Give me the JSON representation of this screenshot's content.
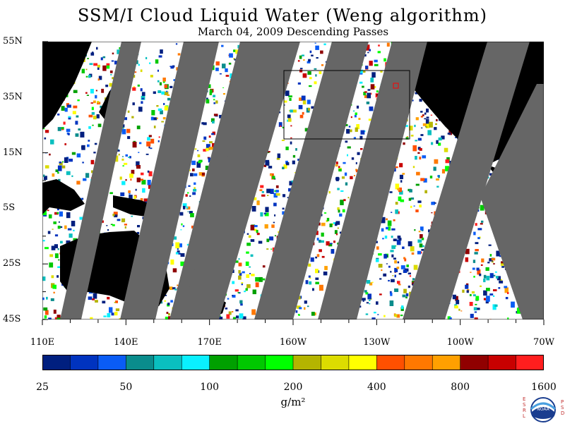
{
  "title": "SSM/I Cloud Liquid Water (Weng algorithm)",
  "subtitle": "March 04, 2009  Descending Passes",
  "map": {
    "lat_labels": [
      "55N",
      "35N",
      "15N",
      "5S",
      "25S",
      "45S"
    ],
    "lon_labels": [
      "110E",
      "140E",
      "170E",
      "160W",
      "130W",
      "100W",
      "70W"
    ],
    "extent": {
      "lon": [
        "110E",
        "70W"
      ],
      "lat": [
        "45S",
        "55N"
      ]
    }
  },
  "colorbar": {
    "labels": [
      "25",
      "50",
      "100",
      "200",
      "400",
      "800",
      "1600"
    ],
    "colors": [
      "#001f7f",
      "#0033bf",
      "#0a5cf5",
      "#0a8c8c",
      "#0abfbf",
      "#0af0ff",
      "#00a000",
      "#00c800",
      "#00ff00",
      "#b4b400",
      "#dcdc00",
      "#ffff00",
      "#ff5000",
      "#ff7800",
      "#ffa000",
      "#900000",
      "#c80000",
      "#ff1e1e"
    ],
    "units": "g/m²"
  },
  "logo": {
    "text": "NOAA",
    "left_letters": [
      "E",
      "S",
      "R",
      "L"
    ],
    "right_letters": [
      "P",
      "S",
      "D"
    ]
  },
  "colors": {
    "land": "#000000",
    "no_data": "#666666",
    "ocean_clear": "#ffffff"
  }
}
